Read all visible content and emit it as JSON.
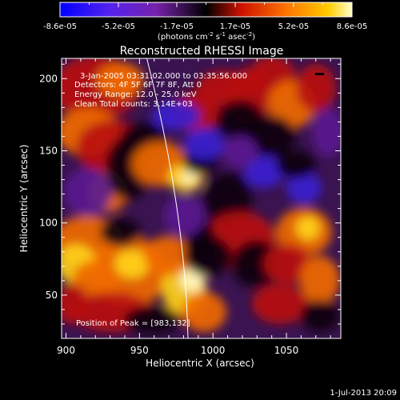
{
  "colorbar": {
    "ticks": [
      "-8.6e-05",
      "-5.2e-05",
      "-1.7e-05",
      "1.7e-05",
      "5.2e-05",
      "8.6e-05"
    ],
    "units_prefix": "(photons cm",
    "units_exp1": "-2",
    "units_mid": " s",
    "units_exp2": "-1",
    "units_mid2": " asec",
    "units_exp3": "-2",
    "units_suffix": ")"
  },
  "chart_data": {
    "type": "heatmap",
    "title": "Reconstructed RHESSI Image",
    "xlabel": "Heliocentric X (arcsec)",
    "ylabel": "Heliocentric Y (arcsec)",
    "xlim": [
      897,
      1087
    ],
    "ylim": [
      20,
      214
    ],
    "xticks": [
      900,
      950,
      1000,
      1050
    ],
    "yticks": [
      50,
      100,
      150,
      200
    ],
    "colorbar_range": [
      -8.6e-05,
      8.6e-05
    ],
    "colormap": "rainbow-like (blue-purple-black-red-orange-yellow-white)",
    "annotations": [
      "3-Jan-2005 03:31:02.000 to 03:35:56.000",
      "Detectors: 4F 5F 6F 7F 8F, Att 0",
      "Energy Range: 12.0 - 25.0 keV",
      "Clean    Total counts: 3.14E+03",
      "Position of Peak = [983,132]"
    ],
    "peak": [
      983,
      132
    ],
    "limb_line": true
  },
  "footer": {
    "timestamp": "1-Jul-2013 20:09"
  }
}
